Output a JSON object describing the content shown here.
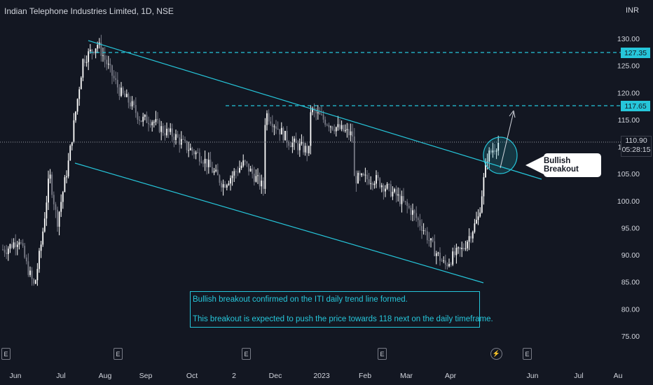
{
  "header": {
    "title": "Indian Telephone Industries Limited, 1D, NSE",
    "currency": "INR"
  },
  "price_tags": {
    "upper_level": "127.35",
    "breakout_level": "117.65",
    "last_price": "110.90",
    "countdown": "05:28:15"
  },
  "callout": {
    "label": "Bullish Breakout"
  },
  "note": {
    "line1": "Bullish breakout confirmed on the ITI daily trend line formed.",
    "line2": "This breakout is expected to push the price towards 118 next on the daily timeframe."
  },
  "events": [
    {
      "label": "E"
    },
    {
      "label": "E"
    },
    {
      "label": "E"
    },
    {
      "label": "E"
    },
    {
      "label": "⚡"
    },
    {
      "label": "E"
    }
  ],
  "colors": {
    "background": "#131722",
    "up": "#ffffff",
    "down": "#787b86",
    "channel": "#26c6da",
    "axis_text": "#d1d4dc"
  },
  "chart_data": {
    "type": "candlestick",
    "title": "Indian Telephone Industries Limited, 1D, NSE",
    "y_axis": {
      "ticks": [
        75,
        80,
        85,
        90,
        95,
        100,
        105,
        110,
        115,
        120,
        125,
        130
      ],
      "range": [
        70,
        131
      ]
    },
    "x_axis": {
      "ticks": [
        "Jun",
        "Jul",
        "Aug",
        "Sep",
        "Oct",
        "2",
        "Dec",
        "2023",
        "Feb",
        "Mar",
        "Apr",
        "Jun",
        "Jul",
        "Au"
      ]
    },
    "horizontal_levels": [
      127.35,
      117.65,
      110.9
    ],
    "channel": {
      "upper_line": {
        "from": [
          "Jul",
          129.5
        ],
        "to": [
          "Apr",
          104.5
        ]
      },
      "lower_line": {
        "from": [
          "Jul",
          106.5
        ],
        "to": [
          "Apr",
          85.0
        ]
      }
    },
    "price_path": [
      [
        "May",
        91
      ],
      [
        "Jun",
        93
      ],
      [
        "Jun",
        88
      ],
      [
        "Jun",
        84
      ],
      [
        "Jun",
        93
      ],
      [
        "Jun",
        105
      ],
      [
        "Jun",
        96
      ],
      [
        "Jul",
        107
      ],
      [
        "Jul",
        126
      ],
      [
        "Jul",
        129
      ],
      [
        "Aug",
        124
      ],
      [
        "Aug",
        120
      ],
      [
        "Aug",
        118
      ],
      [
        "Aug",
        115
      ],
      [
        "Sep",
        115
      ],
      [
        "Sep",
        113
      ],
      [
        "Sep",
        112
      ],
      [
        "Sep",
        110
      ],
      [
        "Oct",
        108
      ],
      [
        "Oct",
        103
      ],
      [
        "Oct",
        107
      ],
      [
        "Oct",
        102
      ],
      [
        "2",
        100
      ],
      [
        "2",
        116
      ],
      [
        "2",
        111
      ],
      [
        "2",
        109
      ],
      [
        "Dec",
        110
      ],
      [
        "Dec",
        117
      ],
      [
        "Dec",
        114
      ],
      [
        "Dec",
        112
      ],
      [
        "2023",
        109
      ],
      [
        "2023",
        103
      ],
      [
        "2023",
        105
      ],
      [
        "2023",
        107
      ],
      [
        "2023",
        106
      ],
      [
        "Feb",
        104
      ],
      [
        "Feb",
        101
      ],
      [
        "Mar",
        98
      ],
      [
        "Mar",
        95
      ],
      [
        "Mar",
        91
      ],
      [
        "Mar",
        88
      ],
      [
        "Apr",
        90
      ],
      [
        "Apr",
        91
      ],
      [
        "Apr",
        94
      ],
      [
        "Apr",
        97
      ],
      [
        "Apr",
        108
      ],
      [
        "Apr",
        110.9
      ]
    ],
    "projection": {
      "from": 106,
      "to": 118
    },
    "annotation": "Bullish Breakout"
  }
}
